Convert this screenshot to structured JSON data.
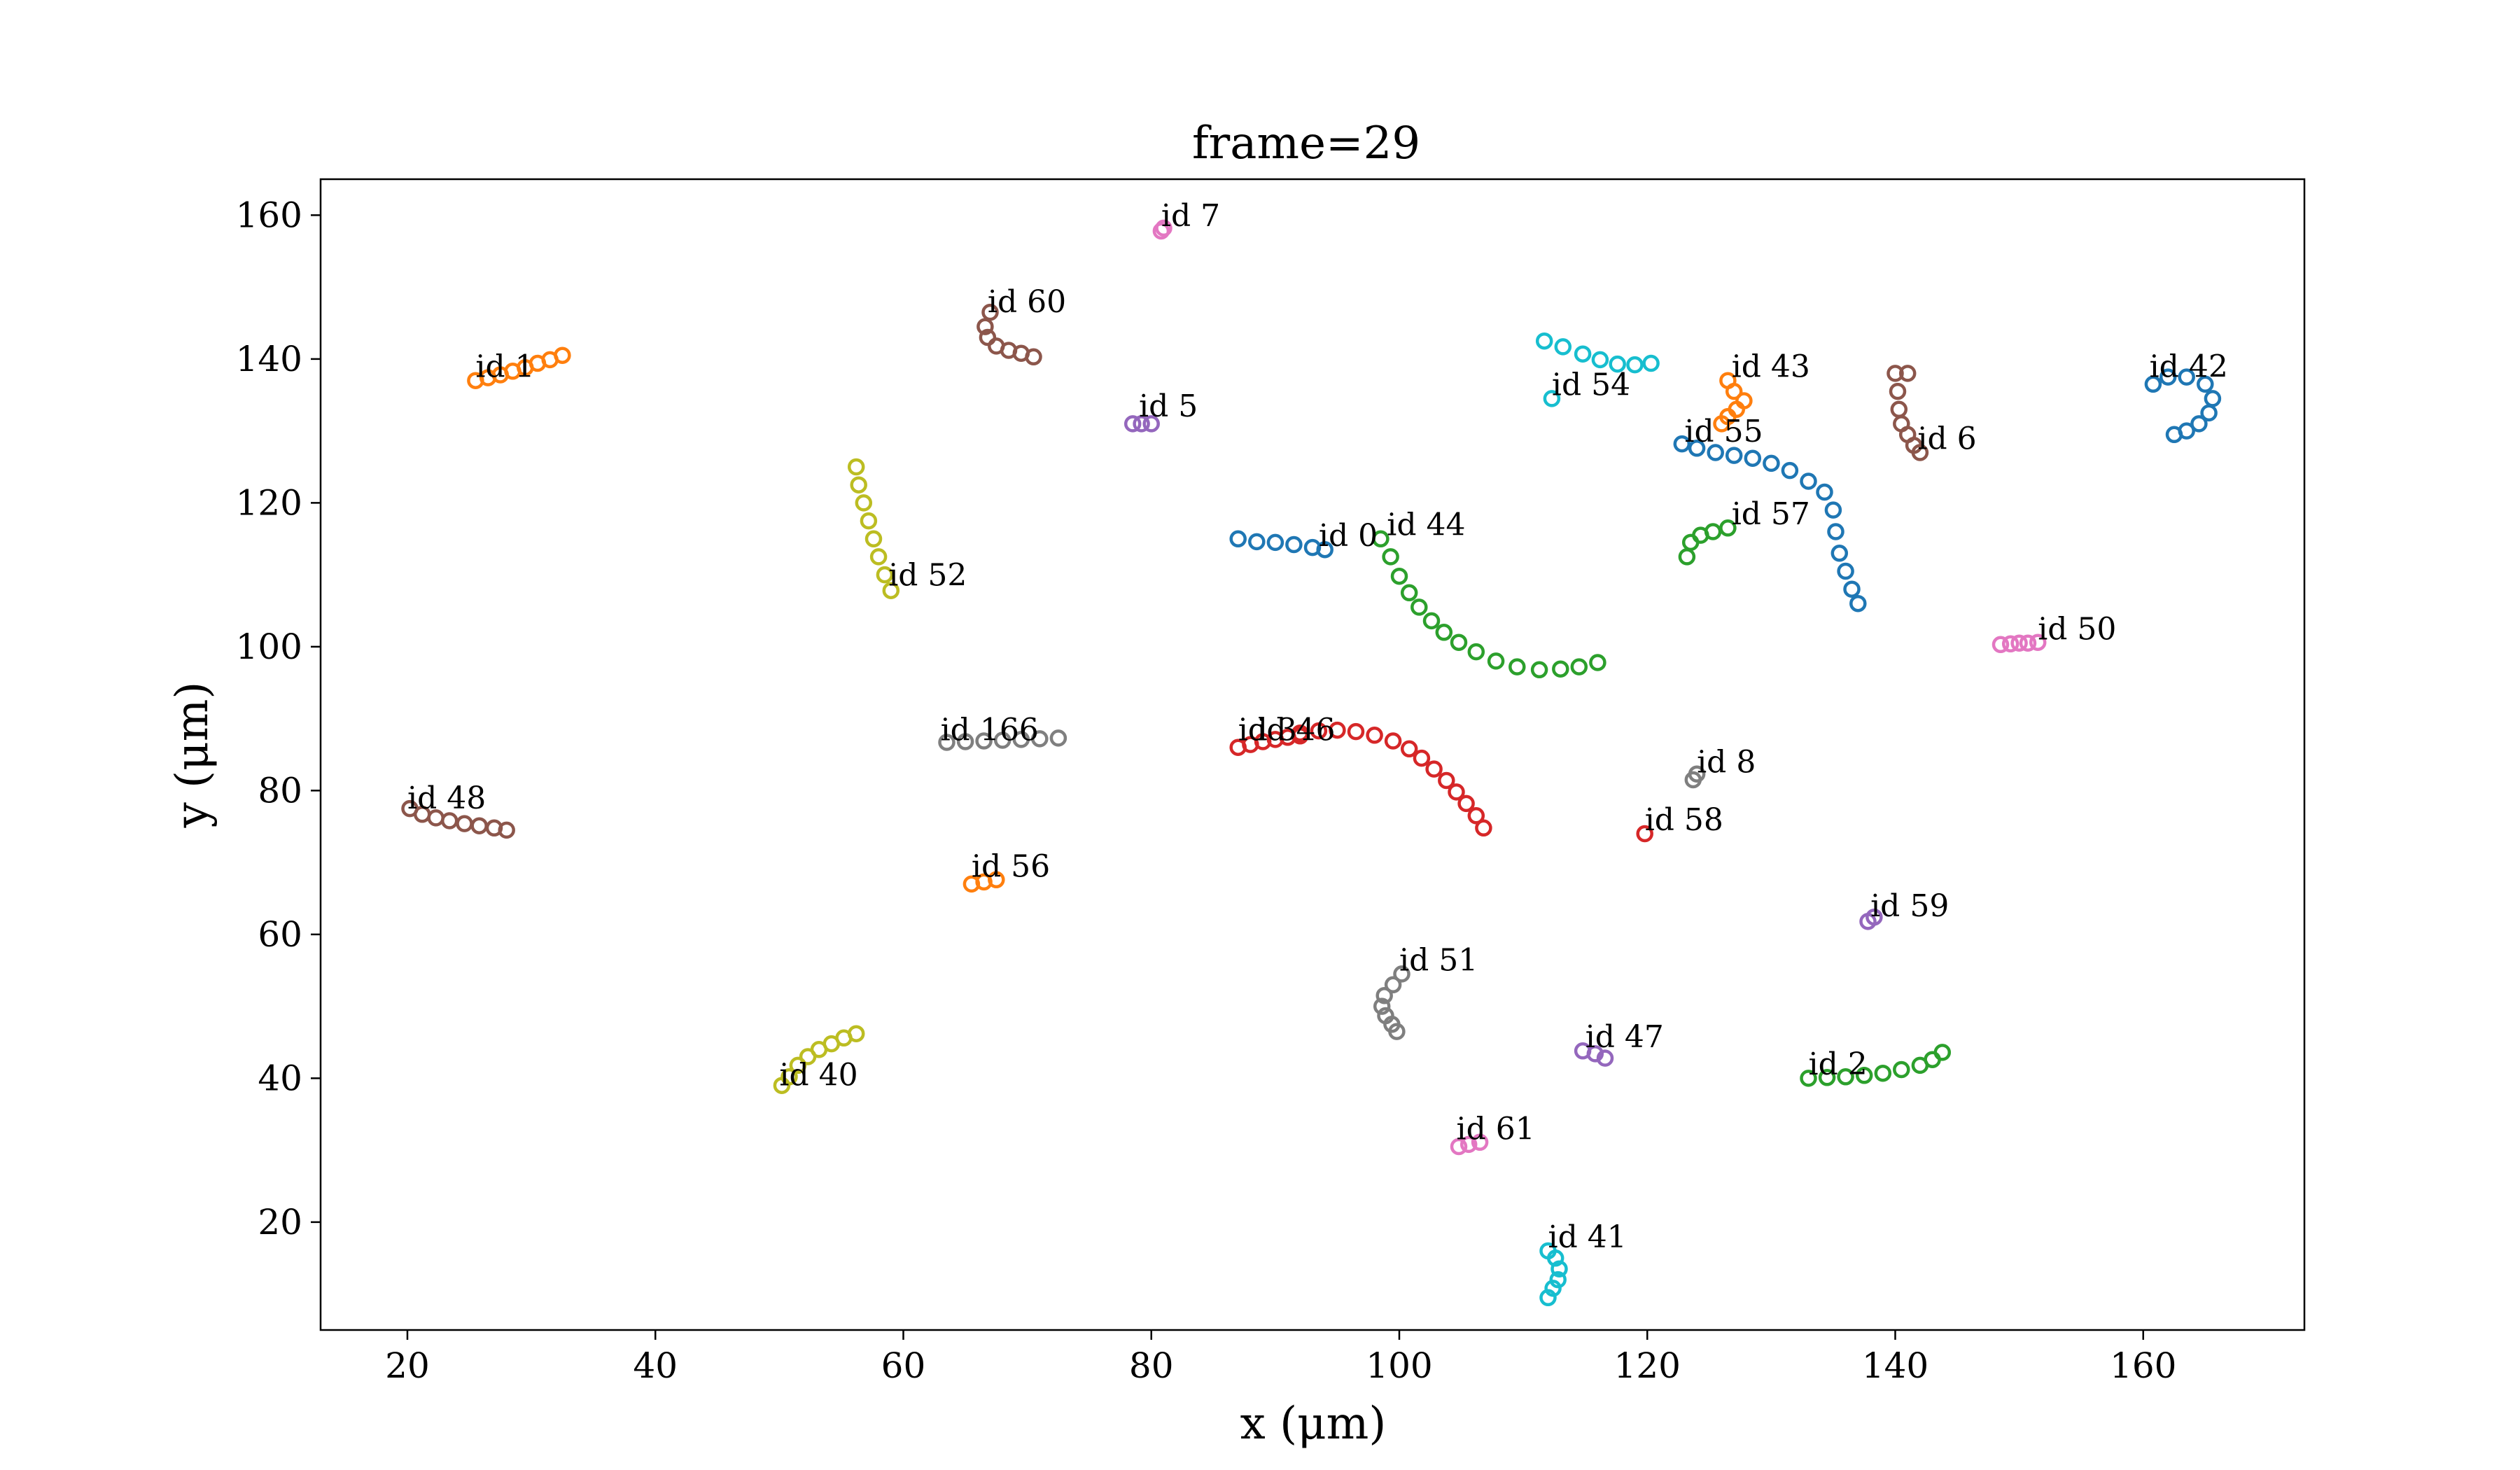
{
  "chart_data": {
    "type": "scatter",
    "title": "frame=29",
    "xlabel": "x (μm)",
    "ylabel": "y (μm)",
    "xlim": [
      13,
      173
    ],
    "ylim": [
      5,
      165
    ],
    "xticks": [
      20,
      40,
      60,
      80,
      100,
      120,
      140,
      160
    ],
    "yticks": [
      20,
      40,
      60,
      80,
      100,
      120,
      140,
      160
    ],
    "grid": false,
    "legend": "none",
    "marker": "open circle",
    "series": [
      {
        "label": "id 0",
        "color": "#1f77b4",
        "x": [
          87,
          88.5,
          90,
          91.5,
          93,
          94
        ],
        "y": [
          115,
          114.6,
          114.5,
          114.2,
          113.8,
          113.5
        ]
      },
      {
        "label": "id 1",
        "color": "#ff7f0e",
        "x": [
          25.5,
          26.5,
          27.5,
          28.5,
          29.5,
          30.5,
          31.5,
          32.5
        ],
        "y": [
          137,
          137.4,
          137.8,
          138.3,
          138.8,
          139.4,
          139.9,
          140.5
        ]
      },
      {
        "label": "id 2",
        "color": "#2ca02c",
        "x": [
          133,
          134.5,
          136,
          137.5,
          139,
          140.5,
          142,
          143,
          143.8
        ],
        "y": [
          40,
          40.1,
          40.2,
          40.4,
          40.7,
          41.2,
          41.8,
          42.6,
          43.6
        ]
      },
      {
        "label": "id 3",
        "color": "#d62728",
        "x": [
          87,
          88,
          89,
          90,
          91,
          92
        ],
        "y": [
          86,
          86.4,
          86.8,
          87.1,
          87.4,
          87.6
        ]
      },
      {
        "label": "id 5",
        "color": "#9467bd",
        "x": [
          78.5,
          79.2,
          80
        ],
        "y": [
          131,
          131,
          131
        ]
      },
      {
        "label": "id 6",
        "color": "#8c564b",
        "x": [
          140,
          140.2,
          141,
          140.3,
          140.5,
          141,
          141.5,
          142
        ],
        "y": [
          138,
          135.5,
          138,
          133,
          131,
          129.5,
          128,
          127
        ]
      },
      {
        "label": "id 7",
        "color": "#e377c2",
        "x": [
          80.8,
          81
        ],
        "y": [
          157.8,
          158.2
        ]
      },
      {
        "label": "id 8",
        "color": "#7f7f7f",
        "x": [
          123.7,
          124
        ],
        "y": [
          81.5,
          82.3
        ]
      },
      {
        "label": "id 40",
        "color": "#bcbd22",
        "x": [
          50.2,
          50.8,
          51.5,
          52.3,
          53.2,
          54.2,
          55.2,
          56.2
        ],
        "y": [
          39,
          40.2,
          41.8,
          43,
          44,
          44.8,
          45.6,
          46.2
        ]
      },
      {
        "label": "id 41",
        "color": "#17becf",
        "x": [
          112,
          112.6,
          112.9,
          112.8,
          112.4,
          112
        ],
        "y": [
          16,
          15,
          13.5,
          12,
          10.8,
          9.5
        ]
      },
      {
        "label": "id 42",
        "color": "#1f77b4",
        "x": [
          160.8,
          162,
          163.5,
          165,
          165.6,
          165.3,
          164.5,
          163.5,
          162.5
        ],
        "y": [
          136.5,
          137.5,
          137.5,
          136.5,
          134.5,
          132.5,
          131,
          130,
          129.5
        ]
      },
      {
        "label": "id 43",
        "color": "#ff7f0e",
        "x": [
          126.5,
          127,
          127.8,
          127.2,
          126.5,
          126
        ],
        "y": [
          137,
          135.5,
          134.2,
          133,
          132,
          131
        ]
      },
      {
        "label": "id 44",
        "color": "#2ca02c",
        "x": [
          98.5,
          99.3,
          100,
          100.8,
          101.6,
          102.6,
          103.6,
          104.8,
          106.2,
          107.8,
          109.5,
          111.3,
          113,
          114.5,
          116
        ],
        "y": [
          115,
          112.5,
          109.8,
          107.5,
          105.5,
          103.6,
          102,
          100.6,
          99.3,
          98,
          97.2,
          96.8,
          96.9,
          97.2,
          97.8
        ]
      },
      {
        "label": "id 46",
        "color": "#d62728",
        "x": [
          92,
          93.5,
          95,
          96.5,
          98,
          99.5,
          100.8,
          101.8,
          102.8,
          103.8,
          104.6,
          105.4,
          106.2,
          106.8
        ],
        "y": [
          88,
          88.3,
          88.4,
          88.2,
          87.7,
          86.9,
          85.8,
          84.5,
          83,
          81.4,
          79.8,
          78.2,
          76.5,
          74.8
        ]
      },
      {
        "label": "id 47",
        "color": "#9467bd",
        "x": [
          114.8,
          115.8,
          116.6
        ],
        "y": [
          43.8,
          43.4,
          42.8
        ]
      },
      {
        "label": "id 48",
        "color": "#8c564b",
        "x": [
          20.2,
          21.2,
          22.3,
          23.4,
          24.6,
          25.8,
          27,
          28
        ],
        "y": [
          77.5,
          76.7,
          76.2,
          75.8,
          75.4,
          75.1,
          74.8,
          74.5
        ]
      },
      {
        "label": "id 50",
        "color": "#e377c2",
        "x": [
          148.5,
          149.3,
          150,
          150.7,
          151.5
        ],
        "y": [
          100.3,
          100.4,
          100.5,
          100.5,
          100.6
        ]
      },
      {
        "label": "id 51",
        "color": "#7f7f7f",
        "x": [
          100.2,
          99.5,
          98.8,
          98.6,
          98.9,
          99.4,
          99.8
        ],
        "y": [
          54.5,
          53,
          51.5,
          50,
          48.7,
          47.5,
          46.5
        ]
      },
      {
        "label": "id 52",
        "color": "#bcbd22",
        "x": [
          56.2,
          56.4,
          56.8,
          57.2,
          57.6,
          58,
          58.5,
          59
        ],
        "y": [
          125,
          122.5,
          120,
          117.5,
          115,
          112.5,
          110,
          107.8
        ]
      },
      {
        "label": "id 54",
        "color": "#17becf",
        "x": [
          111.7,
          113.2,
          114.8,
          116.2,
          117.6,
          119,
          120.3,
          112.3
        ],
        "y": [
          142.5,
          141.7,
          140.7,
          139.9,
          139.3,
          139.2,
          139.4,
          134.5
        ]
      },
      {
        "label": "id 55",
        "color": "#1f77b4",
        "x": [
          122.8,
          124,
          125.5,
          127,
          128.5,
          130,
          131.5,
          133,
          134.3,
          135,
          135.2,
          135.5,
          136,
          136.5,
          137
        ],
        "y": [
          128.2,
          127.6,
          127,
          126.6,
          126.2,
          125.5,
          124.5,
          123,
          121.5,
          119,
          116,
          113,
          110.5,
          108,
          106
        ]
      },
      {
        "label": "id 56",
        "color": "#ff7f0e",
        "x": [
          65.5,
          66.5,
          67.5
        ],
        "y": [
          67,
          67.3,
          67.6
        ]
      },
      {
        "label": "id 57",
        "color": "#2ca02c",
        "x": [
          123.2,
          123.5,
          124.3,
          125.3,
          126.5
        ],
        "y": [
          112.5,
          114.5,
          115.5,
          116,
          116.5
        ]
      },
      {
        "label": "id 58",
        "color": "#d62728",
        "x": [
          119.8
        ],
        "y": [
          74
        ]
      },
      {
        "label": "id 59",
        "color": "#9467bd",
        "x": [
          137.8,
          138.3
        ],
        "y": [
          61.8,
          62.4
        ]
      },
      {
        "label": "id 60",
        "color": "#8c564b",
        "x": [
          67,
          66.6,
          66.8,
          67.5,
          68.5,
          69.5,
          70.5
        ],
        "y": [
          146.5,
          144.5,
          143,
          141.8,
          141.2,
          140.8,
          140.3
        ]
      },
      {
        "label": "id 61",
        "color": "#e377c2",
        "x": [
          104.8,
          105.6,
          106.5
        ],
        "y": [
          30.5,
          30.8,
          31.1
        ]
      },
      {
        "label": "id 166",
        "color": "#7f7f7f",
        "x": [
          63.5,
          65,
          66.5,
          68,
          69.5,
          71,
          72.5
        ],
        "y": [
          86.7,
          86.8,
          86.9,
          87,
          87.1,
          87.2,
          87.3
        ]
      }
    ],
    "annotations": [
      {
        "text": "id 0",
        "x": 93.5,
        "y": 114
      },
      {
        "text": "id 1",
        "x": 25.5,
        "y": 137.5
      },
      {
        "text": "id 2",
        "x": 133,
        "y": 40.5
      },
      {
        "text": "id 3",
        "x": 87,
        "y": 87
      },
      {
        "text": "id 5",
        "x": 79,
        "y": 132
      },
      {
        "text": "id 6",
        "x": 141.8,
        "y": 127.5
      },
      {
        "text": "id 7",
        "x": 80.8,
        "y": 158.5
      },
      {
        "text": "id 8",
        "x": 124,
        "y": 82.5
      },
      {
        "text": "id 40",
        "x": 50,
        "y": 39
      },
      {
        "text": "id 41",
        "x": 112,
        "y": 16.5
      },
      {
        "text": "id 42",
        "x": 160.5,
        "y": 137.5
      },
      {
        "text": "id 43",
        "x": 126.8,
        "y": 137.5
      },
      {
        "text": "id 44",
        "x": 99,
        "y": 115.5
      },
      {
        "text": "id 46",
        "x": 88.5,
        "y": 87
      },
      {
        "text": "id 47",
        "x": 115,
        "y": 44.3
      },
      {
        "text": "id 48",
        "x": 20,
        "y": 77.5
      },
      {
        "text": "id 50",
        "x": 151.5,
        "y": 101
      },
      {
        "text": "id 51",
        "x": 100,
        "y": 55
      },
      {
        "text": "id 52",
        "x": 58.8,
        "y": 108.5
      },
      {
        "text": "id 54",
        "x": 112.3,
        "y": 135
      },
      {
        "text": "id 55",
        "x": 123,
        "y": 128.5
      },
      {
        "text": "id 56",
        "x": 65.5,
        "y": 68
      },
      {
        "text": "id 57",
        "x": 126.8,
        "y": 117
      },
      {
        "text": "id 58",
        "x": 119.8,
        "y": 74.5
      },
      {
        "text": "id 59",
        "x": 138,
        "y": 62.5
      },
      {
        "text": "id 60",
        "x": 66.8,
        "y": 146.5
      },
      {
        "text": "id 61",
        "x": 104.6,
        "y": 31.5
      },
      {
        "text": "id 166",
        "x": 63,
        "y": 87
      }
    ]
  }
}
